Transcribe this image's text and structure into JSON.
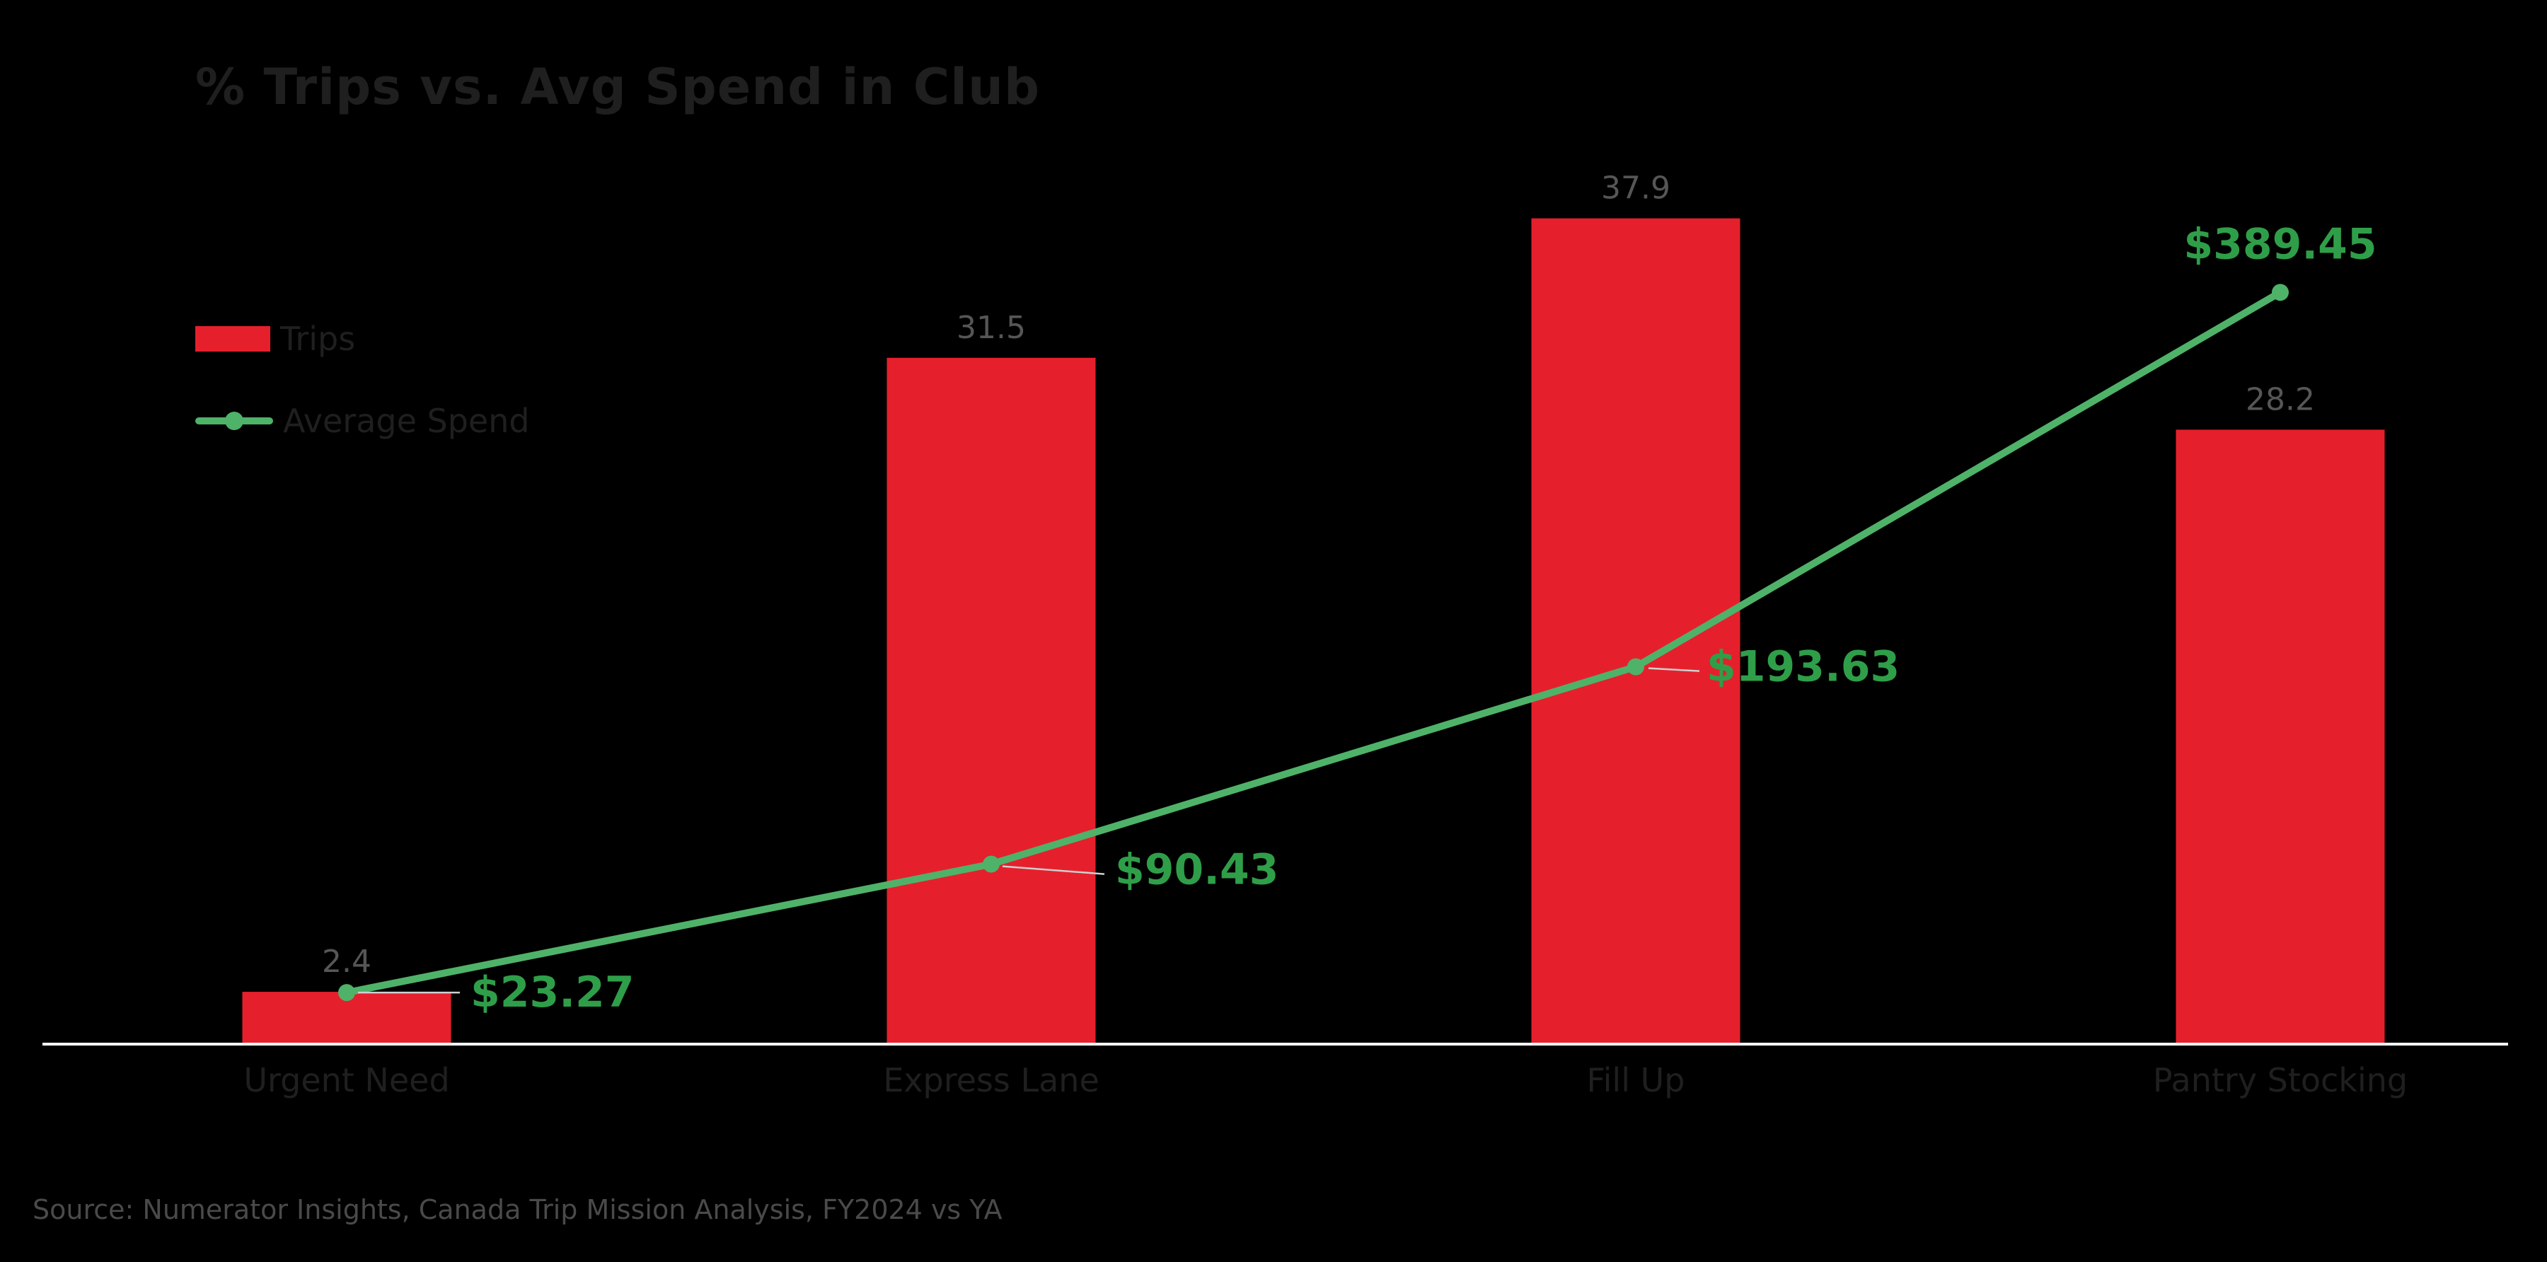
{
  "title": "% Trips vs. Avg Spend in Club",
  "legend": {
    "trips_label": "Trips",
    "spend_label": "Average Spend"
  },
  "source": "Source: Numerator Insights, Canada Trip Mission Analysis, FY2024 vs YA",
  "colors": {
    "background": "#000000",
    "bar": "#e5202c",
    "line": "#4fb269",
    "spend_label": "#2f9e49",
    "bar_label": "#565656",
    "axis": "#ffffff",
    "dark_text": "#1f1f1f",
    "source_text": "#4a4a4a",
    "leader_line": "#cfcfcf"
  },
  "chart_data": {
    "type": "bar",
    "subtype": "bar-line-combo",
    "title": "% Trips vs. Avg Spend in Club",
    "xlabel": "",
    "ylabel": "",
    "grid": false,
    "legend_position": "upper-left",
    "categories": [
      "Urgent Need",
      "Express Lane",
      "Fill Up",
      "Pantry Stocking"
    ],
    "series": [
      {
        "name": "Trips",
        "type": "bar",
        "values": [
          2.4,
          31.5,
          37.9,
          28.2
        ],
        "value_labels": [
          "2.4",
          "31.5",
          "37.9",
          "28.2"
        ],
        "ylim": [
          0,
          42
        ]
      },
      {
        "name": "Average Spend",
        "type": "line",
        "values": [
          23.27,
          90.43,
          193.63,
          389.45
        ],
        "value_labels": [
          "$23.27",
          "$90.43",
          "$193.63",
          "$389.45"
        ],
        "ylim": [
          0,
          520
        ]
      }
    ]
  }
}
